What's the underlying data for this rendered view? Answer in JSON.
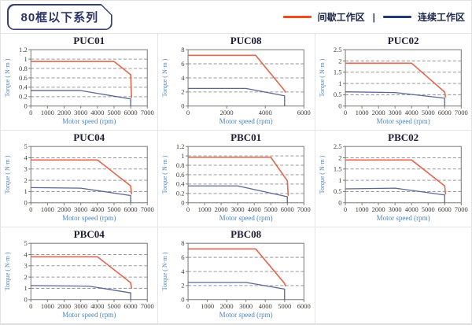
{
  "header": {
    "series_badge": "80框以下系列",
    "legend": {
      "items": [
        {
          "label": "间歇工作区",
          "color": "#ee4b1e"
        },
        {
          "label": "连续工作区",
          "color": "#233a78"
        }
      ],
      "separator": "|"
    }
  },
  "axes": {
    "x_label": "Motor speed (rpm)",
    "y_label": "Torque ( N·m )"
  },
  "colors": {
    "red_curve": "#e4664f",
    "blue_curve": "#5a6795",
    "grid": "#9a9a9a",
    "axis_box": "#787878",
    "tick_text": "#423c36",
    "axis_label_text": "#4e86c0",
    "title_text": "#1d1d35"
  },
  "chart_data": [
    {
      "title": "PUC01",
      "type": "line",
      "xlabel": "Motor speed (rpm)",
      "ylabel": "Torque ( N·m )",
      "xlim": [
        0,
        7000
      ],
      "xtick_step": 1000,
      "ylim": [
        0,
        1.2
      ],
      "ytick_step": 0.2,
      "grid": "horizontal-dashed",
      "series": [
        {
          "name": "间歇工作区",
          "color_key": "red_curve",
          "points": [
            [
              0,
              0.95
            ],
            [
              5000,
              0.95
            ],
            [
              6000,
              0.67
            ],
            [
              6050,
              0.17
            ]
          ]
        },
        {
          "name": "连续工作区",
          "color_key": "blue_curve",
          "points": [
            [
              0,
              0.33
            ],
            [
              3000,
              0.33
            ],
            [
              6000,
              0.15
            ],
            [
              6000,
              0
            ]
          ]
        }
      ]
    },
    {
      "title": "PUC08",
      "type": "line",
      "xlabel": "Motor speed (rpm)",
      "ylabel": "Torque ( N·m )",
      "xlim": [
        0,
        6000
      ],
      "xtick_step": 2000,
      "ylim": [
        0,
        8
      ],
      "ytick_step": 2,
      "grid": "horizontal-dashed",
      "series": [
        {
          "name": "间歇工作区",
          "color_key": "red_curve",
          "points": [
            [
              0,
              7.2
            ],
            [
              3500,
              7.2
            ],
            [
              5000,
              2.2
            ],
            [
              5050,
              1.9
            ]
          ]
        },
        {
          "name": "连续工作区",
          "color_key": "blue_curve",
          "points": [
            [
              0,
              2.5
            ],
            [
              3000,
              2.5
            ],
            [
              5000,
              1.45
            ],
            [
              5000,
              0
            ]
          ]
        }
      ]
    },
    {
      "title": "PUC02",
      "type": "line",
      "xlabel": "Motor speed (rpm)",
      "ylabel": "Torque ( N·m )",
      "xlim": [
        0,
        7000
      ],
      "xtick_step": 1000,
      "ylim": [
        0,
        2.5
      ],
      "ytick_step": 0.5,
      "grid": "horizontal-dashed",
      "series": [
        {
          "name": "间歇工作区",
          "color_key": "red_curve",
          "points": [
            [
              0,
              1.9
            ],
            [
              4000,
              1.9
            ],
            [
              6000,
              0.62
            ],
            [
              6050,
              0.38
            ]
          ]
        },
        {
          "name": "连续工作区",
          "color_key": "blue_curve",
          "points": [
            [
              0,
              0.63
            ],
            [
              3000,
              0.6
            ],
            [
              6000,
              0.35
            ],
            [
              6000,
              0
            ]
          ]
        }
      ]
    },
    {
      "title": "PUC04",
      "type": "line",
      "xlabel": "Motor speed (rpm)",
      "ylabel": "Torque ( N·m )",
      "xlim": [
        0,
        7000
      ],
      "xtick_step": 1000,
      "ylim": [
        0,
        5
      ],
      "ytick_step": 1,
      "grid": "horizontal-dashed",
      "series": [
        {
          "name": "间歇工作区",
          "color_key": "red_curve",
          "points": [
            [
              0,
              3.8
            ],
            [
              4000,
              3.8
            ],
            [
              6000,
              1.5
            ],
            [
              6050,
              0.75
            ]
          ]
        },
        {
          "name": "连续工作区",
          "color_key": "blue_curve",
          "points": [
            [
              0,
              1.35
            ],
            [
              3000,
              1.3
            ],
            [
              6000,
              0.65
            ],
            [
              6000,
              0
            ]
          ]
        }
      ]
    },
    {
      "title": "PBC01",
      "type": "line",
      "xlabel": "Motor speed (rpm)",
      "ylabel": "Torque ( N·m )",
      "xlim": [
        0,
        7000
      ],
      "xtick_step": 1000,
      "ylim": [
        0,
        1.2
      ],
      "ytick_step": 0.2,
      "grid": "horizontal-dashed",
      "series": [
        {
          "name": "间歇工作区",
          "color_key": "red_curve",
          "points": [
            [
              0,
              0.97
            ],
            [
              5000,
              0.97
            ],
            [
              6000,
              0.47
            ],
            [
              6050,
              0.15
            ]
          ]
        },
        {
          "name": "连续工作区",
          "color_key": "blue_curve",
          "points": [
            [
              0,
              0.36
            ],
            [
              3000,
              0.36
            ],
            [
              6000,
              0.13
            ],
            [
              6000,
              0
            ]
          ]
        }
      ]
    },
    {
      "title": "PBC02",
      "type": "line",
      "xlabel": "Motor speed (rpm)",
      "ylabel": "Torque ( N·m )",
      "xlim": [
        0,
        7000
      ],
      "xtick_step": 1000,
      "ylim": [
        0,
        2.5
      ],
      "ytick_step": 0.5,
      "grid": "horizontal-dashed",
      "series": [
        {
          "name": "间歇工作区",
          "color_key": "red_curve",
          "points": [
            [
              0,
              1.9
            ],
            [
              4000,
              1.9
            ],
            [
              6000,
              0.75
            ],
            [
              6050,
              0.38
            ]
          ]
        },
        {
          "name": "连续工作区",
          "color_key": "blue_curve",
          "points": [
            [
              0,
              0.62
            ],
            [
              3000,
              0.65
            ],
            [
              6000,
              0.35
            ],
            [
              6000,
              0
            ]
          ]
        }
      ]
    },
    {
      "title": "PBC04",
      "type": "line",
      "xlabel": "Motor speed (rpm)",
      "ylabel": "Torque ( N·m )",
      "xlim": [
        0,
        7000
      ],
      "xtick_step": 1000,
      "ylim": [
        0,
        5
      ],
      "ytick_step": 1,
      "grid": "horizontal-dashed",
      "series": [
        {
          "name": "间歇工作区",
          "color_key": "red_curve",
          "points": [
            [
              0,
              3.8
            ],
            [
              4000,
              3.8
            ],
            [
              6000,
              1.5
            ],
            [
              6050,
              1.0
            ]
          ]
        },
        {
          "name": "连续工作区",
          "color_key": "blue_curve",
          "points": [
            [
              0,
              1.25
            ],
            [
              3500,
              1.2
            ],
            [
              6000,
              0.6
            ],
            [
              6000,
              0
            ]
          ]
        }
      ]
    },
    {
      "title": "PBC08",
      "type": "line",
      "xlabel": "Motor speed (rpm)",
      "ylabel": "Torque ( N·m )",
      "xlim": [
        0,
        6000
      ],
      "xtick_step": 1000,
      "ylim": [
        0,
        8
      ],
      "ytick_step": 2,
      "grid": "horizontal-dashed",
      "series": [
        {
          "name": "间歇工作区",
          "color_key": "red_curve",
          "points": [
            [
              0,
              7.2
            ],
            [
              3500,
              7.2
            ],
            [
              5000,
              2.3
            ],
            [
              5050,
              1.9
            ]
          ]
        },
        {
          "name": "连续工作区",
          "color_key": "blue_curve",
          "points": [
            [
              0,
              2.45
            ],
            [
              3000,
              2.45
            ],
            [
              5000,
              1.5
            ],
            [
              5000,
              0
            ]
          ]
        }
      ]
    }
  ]
}
